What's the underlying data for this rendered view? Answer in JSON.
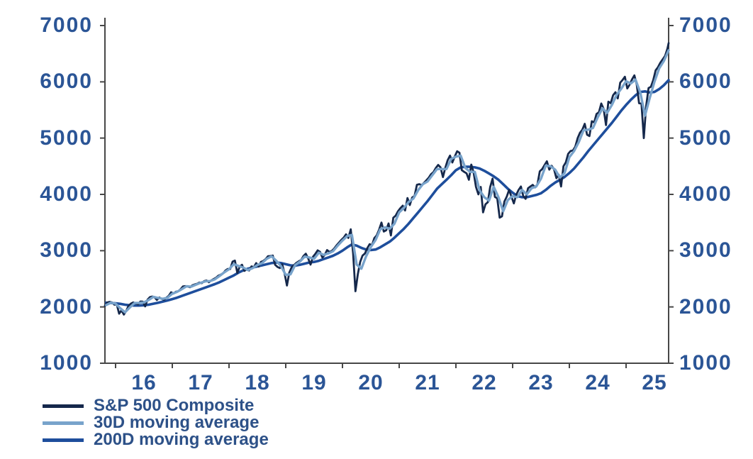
{
  "chart_data": {
    "type": "line",
    "title": "",
    "xlabel": "",
    "ylabel": "",
    "grid": false,
    "legend_position": "bottom-left",
    "x_axis": {
      "unit": "year",
      "range_years": [
        2015.81,
        2025.77
      ],
      "tick_years": [
        2016,
        2017,
        2018,
        2019,
        2020,
        2021,
        2022,
        2023,
        2024,
        2025
      ],
      "tick_labels": [
        "16",
        "17",
        "18",
        "19",
        "20",
        "21",
        "22",
        "23",
        "24",
        "25"
      ]
    },
    "y_axis": {
      "range": [
        1000,
        7000
      ],
      "tick_values": [
        1000,
        2000,
        3000,
        4000,
        5000,
        6000,
        7000
      ],
      "tick_labels": [
        "1000",
        "2000",
        "3000",
        "4000",
        "5000",
        "6000",
        "7000"
      ],
      "sides": "both"
    },
    "axis_color": "#474747",
    "tick_label_color": "#2b5596",
    "draw_order": [
      2,
      0,
      1
    ],
    "series": [
      {
        "name": "S&P 500 Composite",
        "color": "#15284b",
        "width": 2.8,
        "start": 2015.8125,
        "step": 0.0416667,
        "values": [
          2020,
          2079,
          2090,
          2080,
          2040,
          2044,
          1880,
          1940,
          1865,
          1932,
          2020,
          2060,
          2080,
          2065,
          2045,
          2097,
          2095,
          2010,
          2130,
          2174,
          2185,
          2171,
          2125,
          2168,
          2145,
          2126,
          2165,
          2199,
          2260,
          2239,
          2270,
          2279,
          2315,
          2364,
          2370,
          2363,
          2350,
          2384,
          2400,
          2412,
          2435,
          2423,
          2460,
          2470,
          2440,
          2472,
          2495,
          2519,
          2555,
          2575,
          2600,
          2648,
          2675,
          2674,
          2805,
          2824,
          2605,
          2714,
          2750,
          2641,
          2670,
          2648,
          2720,
          2705,
          2780,
          2718,
          2800,
          2816,
          2850,
          2902,
          2905,
          2914,
          2750,
          2712,
          2690,
          2760,
          2600,
          2380,
          2610,
          2704,
          2745,
          2784,
          2810,
          2834,
          2905,
          2946,
          2860,
          2752,
          2890,
          2942,
          3005,
          2980,
          2880,
          2926,
          3010,
          2977,
          2995,
          3038,
          3095,
          3141,
          3190,
          3231,
          3290,
          3226,
          3380,
          2954,
          2280,
          2585,
          2800,
          2912,
          2950,
          3044,
          3115,
          3100,
          3225,
          3271,
          3375,
          3500,
          3340,
          3363,
          3485,
          3270,
          3585,
          3622,
          3700,
          3756,
          3800,
          3714,
          3935,
          3811,
          3945,
          3973,
          4170,
          4181,
          4165,
          4204,
          4250,
          4298,
          4360,
          4395,
          4470,
          4523,
          4480,
          4308,
          4470,
          4605,
          4690,
          4567,
          4670,
          4766,
          4740,
          4430,
          4400,
          4374,
          4260,
          4530,
          4390,
          4132,
          4000,
          4132,
          3680,
          3825,
          3860,
          4130,
          4280,
          3955,
          3930,
          3586,
          3610,
          3872,
          3960,
          4080,
          3960,
          3840,
          3990,
          4077,
          4140,
          3970,
          3920,
          4109,
          4140,
          4169,
          4125,
          4180,
          4410,
          4450,
          4520,
          4589,
          4440,
          4508,
          4450,
          4288,
          4350,
          4140,
          4500,
          4568,
          4720,
          4770,
          4780,
          4846,
          5000,
          5096,
          5150,
          5254,
          5060,
          5036,
          5300,
          5278,
          5430,
          5460,
          5615,
          5522,
          5230,
          5648,
          5620,
          5762,
          5815,
          5705,
          5985,
          6032,
          6090,
          5882,
          5950,
          6041,
          6115,
          5955,
          5620,
          5612,
          5000,
          5569,
          5890,
          5912,
          6030,
          6205,
          6260,
          6339,
          6400,
          6460,
          6590,
          6688
        ]
      },
      {
        "name": "30D moving average",
        "color": "#78a3cb",
        "width": 3.4,
        "start": 2015.8333,
        "step": 0.0833333,
        "values": [
          2033,
          2075,
          2060,
          1975,
          1905,
          1990,
          2070,
          2070,
          2080,
          2125,
          2180,
          2160,
          2145,
          2165,
          2235,
          2268,
          2315,
          2368,
          2360,
          2395,
          2430,
          2455,
          2460,
          2490,
          2550,
          2615,
          2670,
          2760,
          2730,
          2700,
          2655,
          2690,
          2745,
          2780,
          2855,
          2900,
          2820,
          2725,
          2570,
          2580,
          2745,
          2805,
          2895,
          2880,
          2855,
          2965,
          2925,
          2950,
          2990,
          3090,
          3180,
          3260,
          3280,
          2755,
          2680,
          2900,
          3065,
          3190,
          3380,
          3415,
          3390,
          3480,
          3680,
          3760,
          3865,
          3925,
          4075,
          4180,
          4230,
          4340,
          4450,
          4450,
          4450,
          4630,
          4670,
          4690,
          4470,
          4400,
          4400,
          4075,
          3950,
          3890,
          4135,
          3950,
          3700,
          3900,
          3970,
          3950,
          4080,
          4000,
          4110,
          4140,
          4280,
          4510,
          4500,
          4440,
          4300,
          4380,
          4660,
          4770,
          4930,
          5140,
          5150,
          5180,
          5370,
          5530,
          5450,
          5590,
          5770,
          5880,
          6010,
          5970,
          6040,
          5810,
          5400,
          5710,
          6000,
          6240,
          6370,
          6560
        ]
      },
      {
        "name": "200D moving average",
        "color": "#1e4e9c",
        "width": 3.6,
        "start": 2015.8333,
        "step": 0.0833333,
        "values": [
          2075,
          2070,
          2065,
          2055,
          2040,
          2030,
          2025,
          2025,
          2030,
          2040,
          2057,
          2075,
          2095,
          2115,
          2140,
          2165,
          2195,
          2225,
          2255,
          2285,
          2315,
          2345,
          2375,
          2405,
          2440,
          2480,
          2520,
          2560,
          2610,
          2650,
          2680,
          2700,
          2720,
          2740,
          2760,
          2780,
          2790,
          2780,
          2760,
          2740,
          2735,
          2750,
          2770,
          2790,
          2800,
          2820,
          2850,
          2880,
          2910,
          2950,
          3000,
          3060,
          3110,
          3090,
          3050,
          3020,
          3010,
          3020,
          3060,
          3110,
          3160,
          3230,
          3310,
          3390,
          3480,
          3580,
          3680,
          3780,
          3880,
          3990,
          4100,
          4180,
          4260,
          4340,
          4430,
          4480,
          4490,
          4490,
          4480,
          4460,
          4420,
          4370,
          4320,
          4260,
          4180,
          4100,
          4030,
          3970,
          3950,
          3950,
          3970,
          3990,
          4020,
          4080,
          4150,
          4210,
          4260,
          4310,
          4380,
          4460,
          4560,
          4660,
          4770,
          4870,
          4970,
          5070,
          5170,
          5270,
          5380,
          5490,
          5590,
          5680,
          5760,
          5820,
          5830,
          5810,
          5820,
          5870,
          5940,
          6030
        ]
      }
    ]
  }
}
